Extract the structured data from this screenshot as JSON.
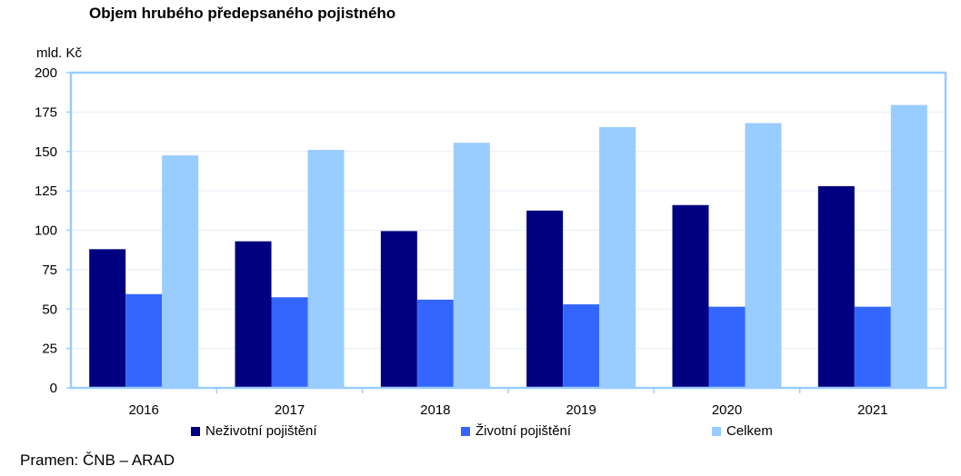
{
  "title": "Objem hrubého předepsaného pojistného",
  "unit_label": "mld. Kč",
  "source": "Pramen: ČNB – ARAD",
  "colors": {
    "nonlife": "#000080",
    "life": "#3366ff",
    "total": "#99ccff",
    "axis_frame": "#99ccff",
    "grid": "#e6eef8"
  },
  "chart_data": {
    "type": "bar",
    "title": "Objem hrubého předepsaného pojistného",
    "ylabel": "mld. Kč",
    "xlabel": "",
    "categories": [
      "2016",
      "2017",
      "2018",
      "2019",
      "2020",
      "2021"
    ],
    "series": [
      {
        "name": "Neživotní pojištění",
        "color": "#000080",
        "values": [
          88,
          93,
          99.5,
          112.5,
          116,
          128
        ]
      },
      {
        "name": "Životní pojištění",
        "color": "#3366ff",
        "values": [
          59.5,
          57.5,
          56,
          53,
          51.5,
          51.5
        ]
      },
      {
        "name": "Celkem",
        "color": "#99ccff",
        "values": [
          147.5,
          151,
          155.5,
          165.5,
          168,
          179.5
        ]
      }
    ],
    "ylim": [
      0,
      200
    ],
    "yticks": [
      "0",
      "25",
      "50",
      "75",
      "100",
      "125",
      "150",
      "175",
      "200"
    ],
    "grid": true,
    "legend_position": "bottom"
  }
}
